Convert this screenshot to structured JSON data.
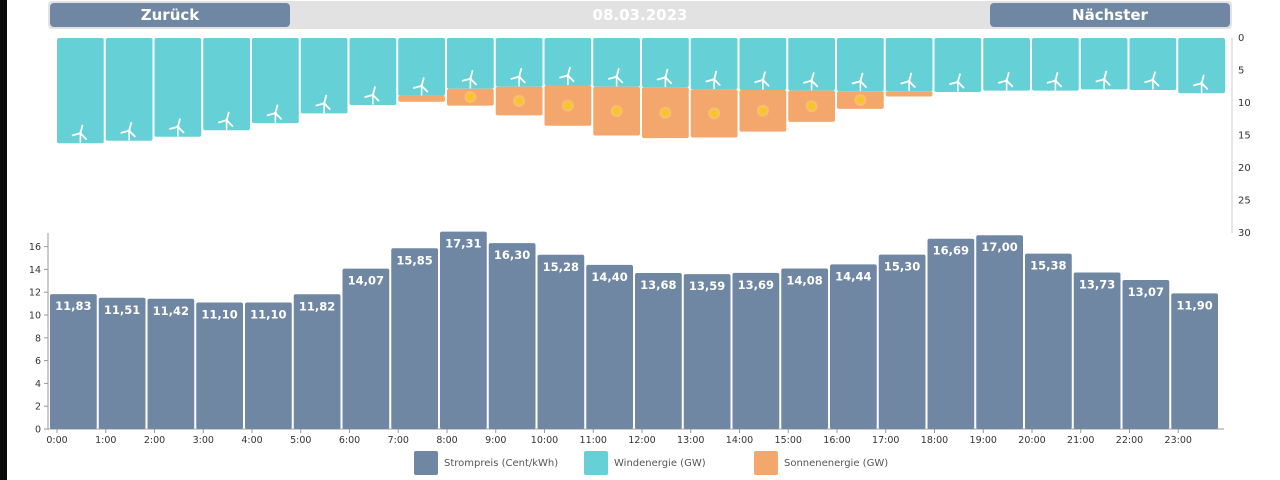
{
  "header": {
    "back_label": "Zurück",
    "next_label": "Nächster",
    "date": "08.03.2023"
  },
  "colors": {
    "price": "#6f87a3",
    "wind": "#66d0d7",
    "solar": "#f3a76d",
    "sun_icon": "#f7c623"
  },
  "chart_data": [
    {
      "type": "bar",
      "orientation": "downward-stacked",
      "categories": [
        "0:00",
        "1:00",
        "2:00",
        "3:00",
        "4:00",
        "5:00",
        "6:00",
        "7:00",
        "8:00",
        "9:00",
        "10:00",
        "11:00",
        "12:00",
        "13:00",
        "14:00",
        "15:00",
        "16:00",
        "17:00",
        "18:00",
        "19:00",
        "20:00",
        "21:00",
        "22:00",
        "23:00"
      ],
      "series": [
        {
          "name": "Windenergie (GW)",
          "values": [
            16.2,
            15.8,
            15.2,
            14.2,
            13.1,
            11.6,
            10.3,
            8.9,
            7.8,
            7.5,
            7.3,
            7.5,
            7.6,
            7.9,
            8.0,
            8.1,
            8.2,
            8.2,
            8.3,
            8.1,
            8.1,
            7.9,
            8.0,
            8.5
          ]
        },
        {
          "name": "Sonnenenergie (GW)",
          "values": [
            0,
            0,
            0,
            0,
            0,
            0,
            0,
            0.9,
            2.6,
            4.4,
            6.2,
            7.5,
            7.8,
            7.4,
            6.4,
            4.8,
            2.7,
            0.8,
            0,
            0,
            0,
            0,
            0,
            0
          ]
        }
      ],
      "ylim": [
        0,
        30
      ],
      "yticks": [
        0,
        5,
        10,
        15,
        20,
        25,
        30
      ]
    },
    {
      "type": "bar",
      "categories": [
        "0:00",
        "1:00",
        "2:00",
        "3:00",
        "4:00",
        "5:00",
        "6:00",
        "7:00",
        "8:00",
        "9:00",
        "10:00",
        "11:00",
        "12:00",
        "13:00",
        "14:00",
        "15:00",
        "16:00",
        "17:00",
        "18:00",
        "19:00",
        "20:00",
        "21:00",
        "22:00",
        "23:00"
      ],
      "series": [
        {
          "name": "Strompreis (Cent/kWh)",
          "values": [
            11.83,
            11.51,
            11.42,
            11.1,
            11.1,
            11.82,
            14.07,
            15.85,
            17.31,
            16.3,
            15.28,
            14.4,
            13.68,
            13.59,
            13.69,
            14.08,
            14.44,
            15.3,
            16.69,
            17.0,
            15.38,
            13.73,
            13.07,
            11.9
          ]
        }
      ],
      "labels": [
        "11,83",
        "11,51",
        "11,42",
        "11,10",
        "11,10",
        "11,82",
        "14,07",
        "15,85",
        "17,31",
        "16,30",
        "15,28",
        "14,40",
        "13,68",
        "13,59",
        "13,69",
        "14,08",
        "14,44",
        "15,30",
        "16,69",
        "17,00",
        "15,38",
        "13,73",
        "13,07",
        "11,90"
      ],
      "ylim": [
        0,
        17
      ],
      "yticks": [
        0,
        2,
        4,
        6,
        8,
        10,
        12,
        14,
        16
      ]
    }
  ],
  "legend": [
    {
      "name": "Strompreis (Cent/kWh)",
      "color": "#6f87a3"
    },
    {
      "name": "Windenergie (GW)",
      "color": "#66d0d7"
    },
    {
      "name": "Sonnenenergie (GW)",
      "color": "#f3a76d"
    }
  ]
}
